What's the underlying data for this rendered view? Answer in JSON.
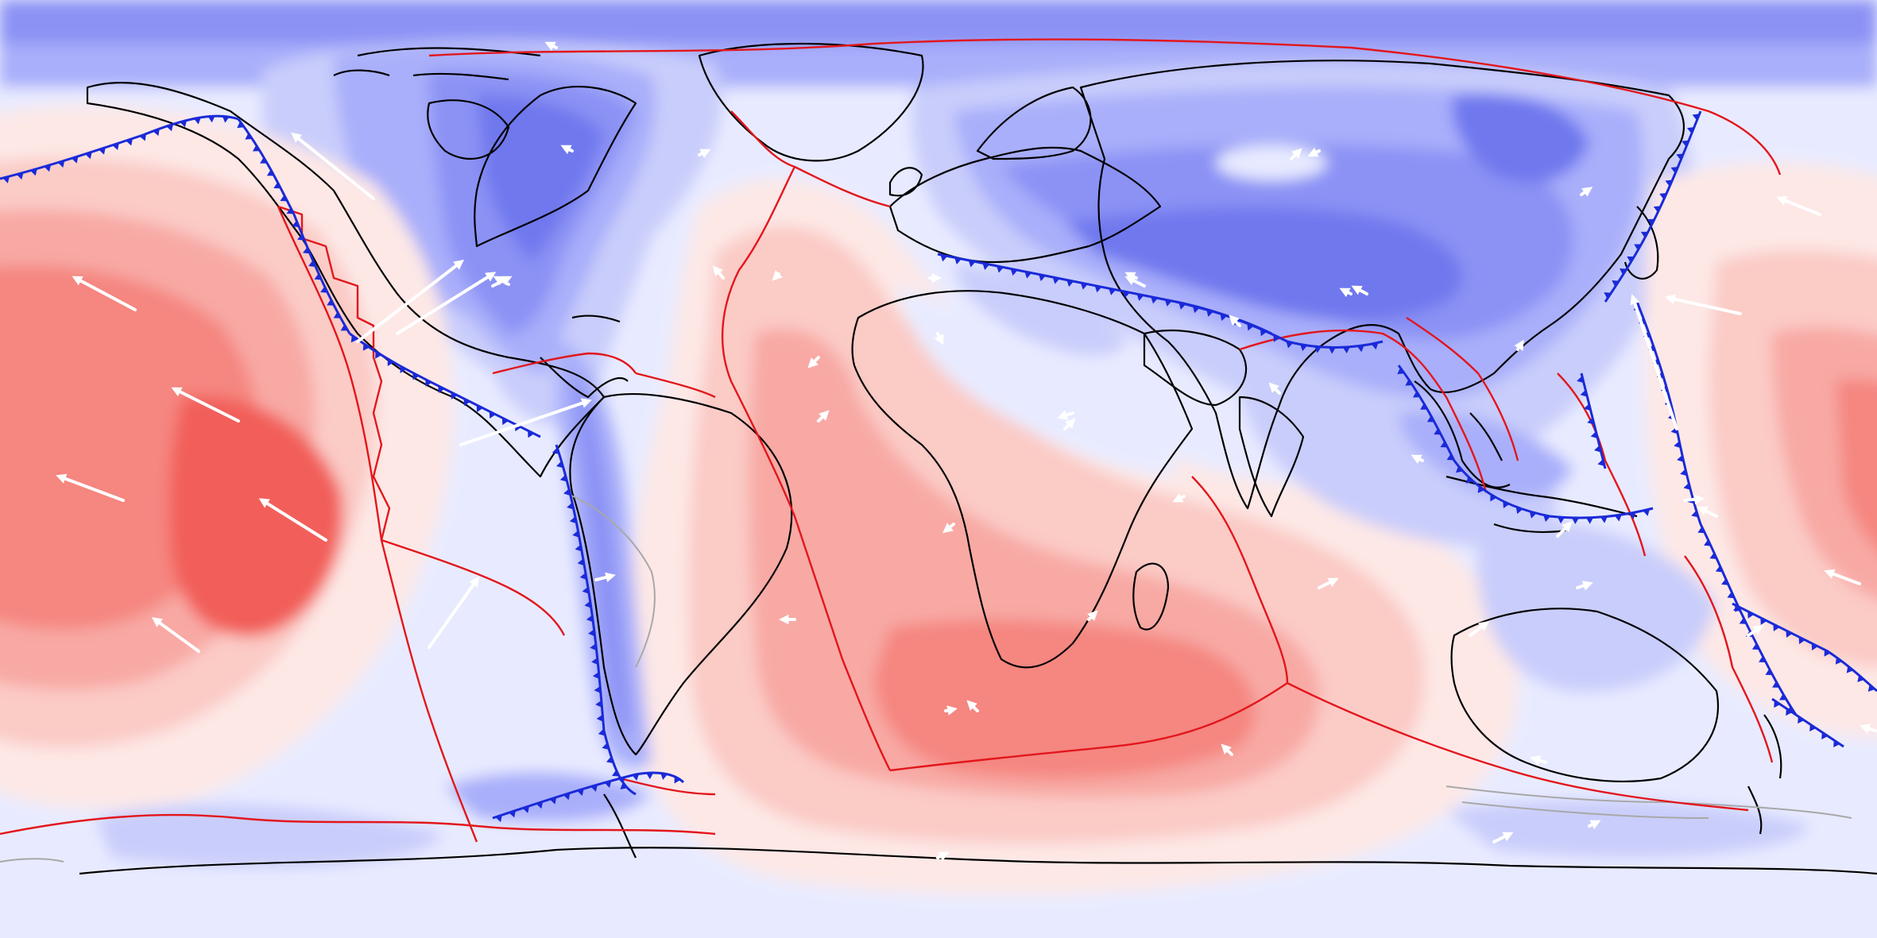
{
  "map": {
    "projection": "equirectangular",
    "field_colormap": {
      "positive": [
        "#fde8e6",
        "#fbcbc6",
        "#f8a9a4",
        "#f58680",
        "#f25e5a"
      ],
      "neutral": "#e8ebff",
      "negative": [
        "#c9cdfb",
        "#a9affa",
        "#8b92f4",
        "#6f78ee"
      ]
    },
    "colors": {
      "coastline": "#000000",
      "plate_boundary": "#e3161c",
      "subduction_zone": "#1a2ad8",
      "secondary_boundary": "#a8a8a8",
      "velocity_arrow": "#ffffff"
    },
    "layers": [
      "dynamic-topography-field",
      "coastlines",
      "plate-boundaries",
      "subduction-zones",
      "plate-velocity-arrows"
    ],
    "arrow_count": 58
  }
}
